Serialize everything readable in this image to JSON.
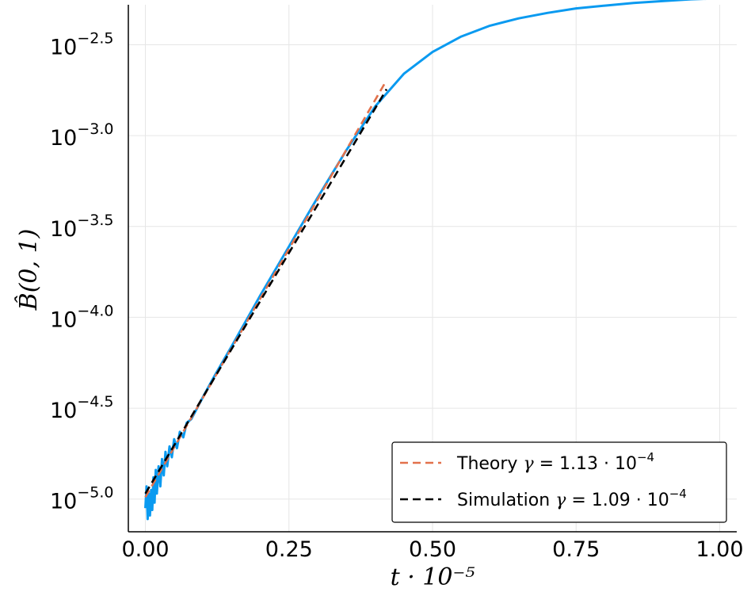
{
  "chart_data": {
    "type": "line",
    "title": "",
    "xlabel": "t · 10⁻⁵",
    "ylabel": "B̂(0, 1)",
    "x_scale": "linear",
    "y_scale": "log10",
    "xlim": [
      0.0,
      1.0
    ],
    "ylim_log10": [
      -5.18,
      -2.28
    ],
    "x_ticks": [
      0.0,
      0.25,
      0.5,
      0.75,
      1.0
    ],
    "x_tick_labels": [
      "0.00",
      "0.25",
      "0.50",
      "0.75",
      "1.00"
    ],
    "y_ticks_log10": [
      -5.0,
      -4.5,
      -4.0,
      -3.5,
      -3.0,
      -2.5
    ],
    "y_tick_labels": [
      {
        "base": "10",
        "exp": "−5.0"
      },
      {
        "base": "10",
        "exp": "−4.5"
      },
      {
        "base": "10",
        "exp": "−4.0"
      },
      {
        "base": "10",
        "exp": "−3.5"
      },
      {
        "base": "10",
        "exp": "−3.0"
      },
      {
        "base": "10",
        "exp": "−2.5"
      }
    ],
    "grid": true,
    "legend_position": "bottom-right",
    "series": [
      {
        "label": "",
        "style": "solid",
        "color": "#0a9af0",
        "x_log10y": [
          [
            0.0,
            -5.05
          ],
          [
            0.002,
            -4.93
          ],
          [
            0.004,
            -5.11
          ],
          [
            0.006,
            -4.97
          ],
          [
            0.008,
            -5.09
          ],
          [
            0.01,
            -4.95
          ],
          [
            0.012,
            -5.06
          ],
          [
            0.014,
            -4.88
          ],
          [
            0.016,
            -5.02
          ],
          [
            0.018,
            -4.84
          ],
          [
            0.02,
            -4.97
          ],
          [
            0.023,
            -4.82
          ],
          [
            0.026,
            -4.93
          ],
          [
            0.029,
            -4.78
          ],
          [
            0.032,
            -4.87
          ],
          [
            0.035,
            -4.74
          ],
          [
            0.038,
            -4.82
          ],
          [
            0.042,
            -4.71
          ],
          [
            0.046,
            -4.77
          ],
          [
            0.05,
            -4.67
          ],
          [
            0.055,
            -4.72
          ],
          [
            0.06,
            -4.63
          ],
          [
            0.066,
            -4.66
          ],
          [
            0.072,
            -4.58
          ],
          [
            0.08,
            -4.56
          ],
          [
            0.09,
            -4.5
          ],
          [
            0.1,
            -4.44
          ],
          [
            0.12,
            -4.325
          ],
          [
            0.15,
            -4.16
          ],
          [
            0.2,
            -3.88
          ],
          [
            0.25,
            -3.61
          ],
          [
            0.3,
            -3.34
          ],
          [
            0.35,
            -3.08
          ],
          [
            0.4,
            -2.84
          ],
          [
            0.45,
            -2.66
          ],
          [
            0.5,
            -2.54
          ],
          [
            0.55,
            -2.455
          ],
          [
            0.6,
            -2.395
          ],
          [
            0.65,
            -2.355
          ],
          [
            0.7,
            -2.325
          ],
          [
            0.75,
            -2.3
          ],
          [
            0.8,
            -2.285
          ],
          [
            0.85,
            -2.27
          ],
          [
            0.9,
            -2.26
          ],
          [
            0.95,
            -2.25
          ],
          [
            1.0,
            -2.245
          ]
        ]
      },
      {
        "label": "Theory γ = 1.13 · 10⁻⁴",
        "style": "dashed",
        "color": "#e2714b",
        "x_log10y": [
          [
            0.0,
            -4.99
          ],
          [
            0.42,
            -2.695
          ]
        ]
      },
      {
        "label": "Simulation γ = 1.09 · 10⁻⁴",
        "style": "dashed",
        "color": "#000000",
        "x_log10y": [
          [
            0.0,
            -4.97
          ],
          [
            0.42,
            -2.745
          ]
        ]
      }
    ],
    "legend": [
      {
        "label_plain": "Theory ",
        "symbol": "γ",
        "eq": " = 1.13 · 10",
        "exp": "−4",
        "color": "#e2714b"
      },
      {
        "label_plain": "Simulation ",
        "symbol": "γ",
        "eq": " = 1.09 · 10",
        "exp": "−4",
        "color": "#000000"
      }
    ]
  }
}
